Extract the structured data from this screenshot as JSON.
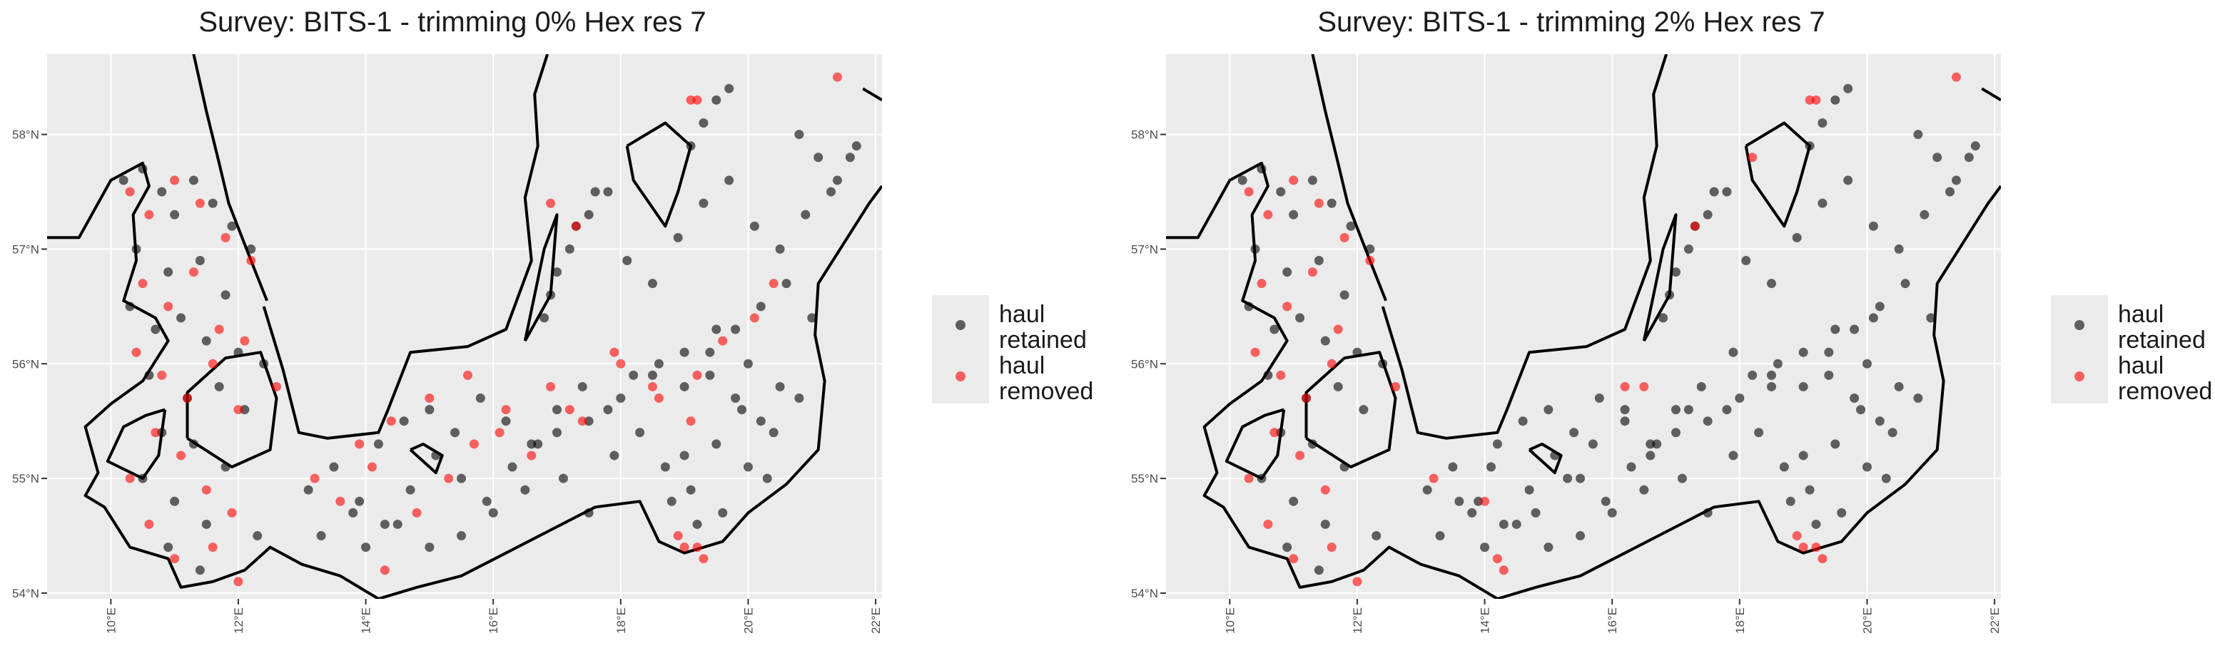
{
  "chart_data": [
    {
      "type": "scatter",
      "title": "Survey: BITS-1 - trimming 0% Hex res 7",
      "xlabel": "",
      "ylabel": "",
      "xlim": [
        9.0,
        22.1
      ],
      "ylim": [
        53.95,
        58.7
      ],
      "x_ticks": [
        10,
        12,
        14,
        16,
        18,
        20,
        22
      ],
      "x_tick_labels": [
        "10°E",
        "12°E",
        "14°E",
        "16°E",
        "18°E",
        "20°E",
        "22°E"
      ],
      "y_ticks": [
        54,
        55,
        56,
        57,
        58
      ],
      "y_tick_labels": [
        "54°N",
        "55°N",
        "56°N",
        "57°N",
        "58°N"
      ],
      "grid": true,
      "legend_position": "right",
      "legend": [
        "haul retained",
        "haul removed"
      ],
      "series": [
        {
          "name": "haul retained",
          "color": "#000000",
          "opacity": 0.6,
          "x": [
            10.2,
            10.5,
            10.8,
            11.0,
            11.3,
            11.6,
            11.9,
            12.2,
            10.4,
            10.9,
            11.4,
            11.8,
            10.3,
            10.7,
            11.1,
            11.5,
            12.0,
            12.4,
            10.6,
            11.2,
            11.7,
            12.1,
            10.8,
            11.3,
            11.8,
            10.5,
            11.0,
            11.5,
            10.9,
            11.4,
            12.3,
            13.1,
            13.5,
            13.9,
            14.3,
            14.7,
            15.1,
            15.5,
            15.9,
            16.3,
            16.7,
            17.1,
            17.5,
            17.9,
            18.3,
            18.7,
            19.1,
            19.5,
            19.9,
            20.3,
            13.3,
            13.8,
            14.2,
            14.6,
            15.0,
            15.4,
            15.8,
            16.2,
            16.6,
            17.0,
            17.4,
            17.8,
            18.2,
            18.6,
            19.0,
            19.4,
            19.8,
            20.2,
            14.0,
            14.5,
            15.0,
            15.5,
            16.0,
            16.5,
            17.0,
            17.5,
            18.0,
            18.5,
            19.0,
            19.5,
            20.0,
            20.5,
            18.8,
            19.2,
            19.6,
            20.0,
            20.4,
            20.8,
            19.0,
            19.4,
            19.8,
            20.2,
            20.6,
            21.0,
            16.9,
            17.2,
            17.5,
            17.8,
            18.1,
            18.5,
            18.9,
            19.3,
            19.7,
            20.1,
            20.5,
            20.9,
            21.3,
            21.6,
            19.1,
            19.3,
            19.5,
            19.7,
            20.8,
            21.1,
            21.4,
            21.7,
            16.8,
            17.0,
            17.3,
            17.6
          ],
          "y": [
            57.6,
            57.7,
            57.5,
            57.3,
            57.6,
            57.4,
            57.2,
            57.0,
            57.0,
            56.8,
            56.9,
            56.6,
            56.5,
            56.3,
            56.4,
            56.2,
            56.1,
            56.0,
            55.9,
            55.7,
            55.8,
            55.6,
            55.4,
            55.3,
            55.1,
            55.0,
            54.8,
            54.6,
            54.4,
            54.2,
            54.5,
            54.9,
            55.1,
            54.8,
            54.6,
            54.9,
            55.2,
            55.0,
            54.8,
            55.1,
            55.3,
            55.0,
            54.7,
            55.2,
            55.4,
            55.1,
            54.9,
            55.3,
            55.6,
            55.0,
            54.5,
            54.7,
            55.3,
            55.5,
            55.6,
            55.4,
            55.7,
            55.5,
            55.3,
            55.6,
            55.8,
            55.6,
            55.9,
            56.0,
            55.8,
            56.1,
            55.7,
            55.5,
            54.4,
            54.6,
            54.4,
            54.5,
            54.7,
            54.9,
            55.4,
            55.5,
            55.7,
            55.9,
            56.1,
            56.3,
            56.0,
            55.8,
            54.8,
            54.6,
            54.7,
            55.1,
            55.4,
            55.7,
            55.2,
            55.9,
            56.3,
            56.5,
            56.7,
            56.4,
            56.6,
            57.0,
            57.3,
            57.5,
            56.9,
            56.7,
            57.1,
            57.4,
            57.6,
            57.2,
            57.0,
            57.3,
            57.5,
            57.8,
            57.9,
            58.1,
            58.3,
            58.4,
            58.0,
            57.8,
            57.6,
            57.9,
            56.4,
            56.8,
            57.2,
            57.5
          ]
        },
        {
          "name": "haul removed",
          "color": "#ff0000",
          "opacity": 0.6,
          "x": [
            10.3,
            10.6,
            11.0,
            11.4,
            11.8,
            12.2,
            10.5,
            10.9,
            11.3,
            11.7,
            12.1,
            10.4,
            10.8,
            11.2,
            11.6,
            12.0,
            12.6,
            10.7,
            11.1,
            11.5,
            11.9,
            10.3,
            10.6,
            11.0,
            11.6,
            12.0,
            13.2,
            13.6,
            14.1,
            14.3,
            14.8,
            15.3,
            15.7,
            16.2,
            16.9,
            17.4,
            18.0,
            18.6,
            19.2,
            19.6,
            20.1,
            20.4,
            13.9,
            14.4,
            15.0,
            15.6,
            16.1,
            16.6,
            17.2,
            17.9,
            18.5,
            19.1,
            19.0,
            19.2,
            19.3,
            18.9,
            21.4,
            19.1,
            19.2,
            16.9,
            17.3
          ],
          "y": [
            57.5,
            57.3,
            57.6,
            57.4,
            57.1,
            56.9,
            56.7,
            56.5,
            56.8,
            56.3,
            56.2,
            56.1,
            55.9,
            55.7,
            56.0,
            55.6,
            55.8,
            55.4,
            55.2,
            54.9,
            54.7,
            55.0,
            54.6,
            54.3,
            54.4,
            54.1,
            55.0,
            54.8,
            55.1,
            54.2,
            54.7,
            55.0,
            55.3,
            55.6,
            55.8,
            55.5,
            56.0,
            55.7,
            55.9,
            56.2,
            56.4,
            56.7,
            55.3,
            55.5,
            55.7,
            55.9,
            55.4,
            55.2,
            55.6,
            56.1,
            55.8,
            55.5,
            54.4,
            54.4,
            54.3,
            54.5,
            58.5,
            58.3,
            58.3,
            57.4,
            57.2
          ]
        }
      ]
    },
    {
      "type": "scatter",
      "title": "Survey: BITS-1 - trimming 2% Hex res 7",
      "xlabel": "",
      "ylabel": "",
      "xlim": [
        9.0,
        22.1
      ],
      "ylim": [
        53.95,
        58.7
      ],
      "x_ticks": [
        10,
        12,
        14,
        16,
        18,
        20,
        22
      ],
      "x_tick_labels": [
        "10°E",
        "12°E",
        "14°E",
        "16°E",
        "18°E",
        "20°E",
        "22°E"
      ],
      "y_ticks": [
        54,
        55,
        56,
        57,
        58
      ],
      "y_tick_labels": [
        "54°N",
        "55°N",
        "56°N",
        "57°N",
        "58°N"
      ],
      "grid": true,
      "legend_position": "right",
      "legend": [
        "haul retained",
        "haul removed"
      ],
      "series": [
        {
          "name": "haul retained",
          "color": "#000000",
          "opacity": 0.6,
          "x": [
            10.2,
            10.5,
            10.8,
            11.0,
            11.3,
            11.6,
            11.9,
            12.2,
            10.4,
            10.9,
            11.4,
            11.8,
            10.3,
            10.7,
            11.1,
            11.5,
            12.0,
            12.4,
            10.6,
            11.2,
            11.7,
            12.1,
            10.8,
            11.3,
            11.8,
            10.5,
            11.0,
            11.5,
            10.9,
            11.4,
            12.3,
            13.1,
            13.5,
            13.9,
            14.3,
            14.7,
            15.1,
            15.5,
            15.9,
            16.3,
            16.7,
            17.1,
            17.5,
            17.9,
            18.3,
            18.7,
            19.1,
            19.5,
            19.9,
            20.3,
            13.3,
            13.8,
            14.2,
            14.6,
            15.0,
            15.4,
            15.8,
            16.2,
            16.6,
            17.0,
            17.4,
            17.8,
            18.2,
            18.6,
            19.0,
            19.4,
            19.8,
            20.2,
            14.0,
            14.5,
            15.0,
            15.5,
            16.0,
            16.5,
            17.0,
            17.5,
            18.0,
            18.5,
            19.0,
            19.5,
            20.0,
            20.5,
            18.8,
            19.2,
            19.6,
            20.0,
            20.4,
            20.8,
            19.0,
            19.4,
            19.8,
            20.2,
            20.6,
            21.0,
            16.9,
            17.2,
            17.5,
            17.8,
            18.1,
            18.5,
            18.9,
            19.3,
            19.7,
            20.1,
            20.5,
            20.9,
            21.3,
            21.6,
            19.1,
            19.3,
            19.5,
            19.7,
            20.8,
            21.1,
            21.4,
            21.7,
            16.8,
            17.0,
            17.3,
            17.6,
            13.6,
            14.1,
            14.8,
            15.3,
            15.7,
            16.2,
            16.6,
            17.2,
            17.9,
            18.5,
            20.1
          ],
          "y": [
            57.6,
            57.7,
            57.5,
            57.3,
            57.6,
            57.4,
            57.2,
            57.0,
            57.0,
            56.8,
            56.9,
            56.6,
            56.5,
            56.3,
            56.4,
            56.2,
            56.1,
            56.0,
            55.9,
            55.7,
            55.8,
            55.6,
            55.4,
            55.3,
            55.1,
            55.0,
            54.8,
            54.6,
            54.4,
            54.2,
            54.5,
            54.9,
            55.1,
            54.8,
            54.6,
            54.9,
            55.2,
            55.0,
            54.8,
            55.1,
            55.3,
            55.0,
            54.7,
            55.2,
            55.4,
            55.1,
            54.9,
            55.3,
            55.6,
            55.0,
            54.5,
            54.7,
            55.3,
            55.5,
            55.6,
            55.4,
            55.7,
            55.5,
            55.3,
            55.6,
            55.8,
            55.6,
            55.9,
            56.0,
            55.8,
            56.1,
            55.7,
            55.5,
            54.4,
            54.6,
            54.4,
            54.5,
            54.7,
            54.9,
            55.4,
            55.5,
            55.7,
            55.9,
            56.1,
            56.3,
            56.0,
            55.8,
            54.8,
            54.6,
            54.7,
            55.1,
            55.4,
            55.7,
            55.2,
            55.9,
            56.3,
            56.5,
            56.7,
            56.4,
            56.6,
            57.0,
            57.3,
            57.5,
            56.9,
            56.7,
            57.1,
            57.4,
            57.6,
            57.2,
            57.0,
            57.3,
            57.5,
            57.8,
            57.9,
            58.1,
            58.3,
            58.4,
            58.0,
            57.8,
            57.6,
            57.9,
            56.4,
            56.8,
            57.2,
            57.5,
            54.8,
            55.1,
            54.7,
            55.0,
            55.3,
            55.6,
            55.2,
            55.6,
            56.1,
            55.8,
            56.4
          ]
        },
        {
          "name": "haul removed",
          "color": "#ff0000",
          "opacity": 0.6,
          "x": [
            10.3,
            10.6,
            11.0,
            11.4,
            11.8,
            12.2,
            10.5,
            10.9,
            11.3,
            11.7,
            10.4,
            10.8,
            11.2,
            11.6,
            12.6,
            10.7,
            11.1,
            11.5,
            10.3,
            10.6,
            11.0,
            11.6,
            12.0,
            13.2,
            14.3,
            14.2,
            14.0,
            16.2,
            19.0,
            19.2,
            19.3,
            18.9,
            21.4,
            19.1,
            19.2,
            17.3,
            18.2,
            16.5
          ],
          "y": [
            57.5,
            57.3,
            57.6,
            57.4,
            57.1,
            56.9,
            56.7,
            56.5,
            56.8,
            56.3,
            56.1,
            55.9,
            55.7,
            56.0,
            55.8,
            55.4,
            55.2,
            54.9,
            55.0,
            54.6,
            54.3,
            54.4,
            54.1,
            55.0,
            54.2,
            54.3,
            54.8,
            55.8,
            54.4,
            54.4,
            54.3,
            54.5,
            58.5,
            58.3,
            58.3,
            57.2,
            57.8,
            55.8
          ]
        }
      ]
    }
  ]
}
